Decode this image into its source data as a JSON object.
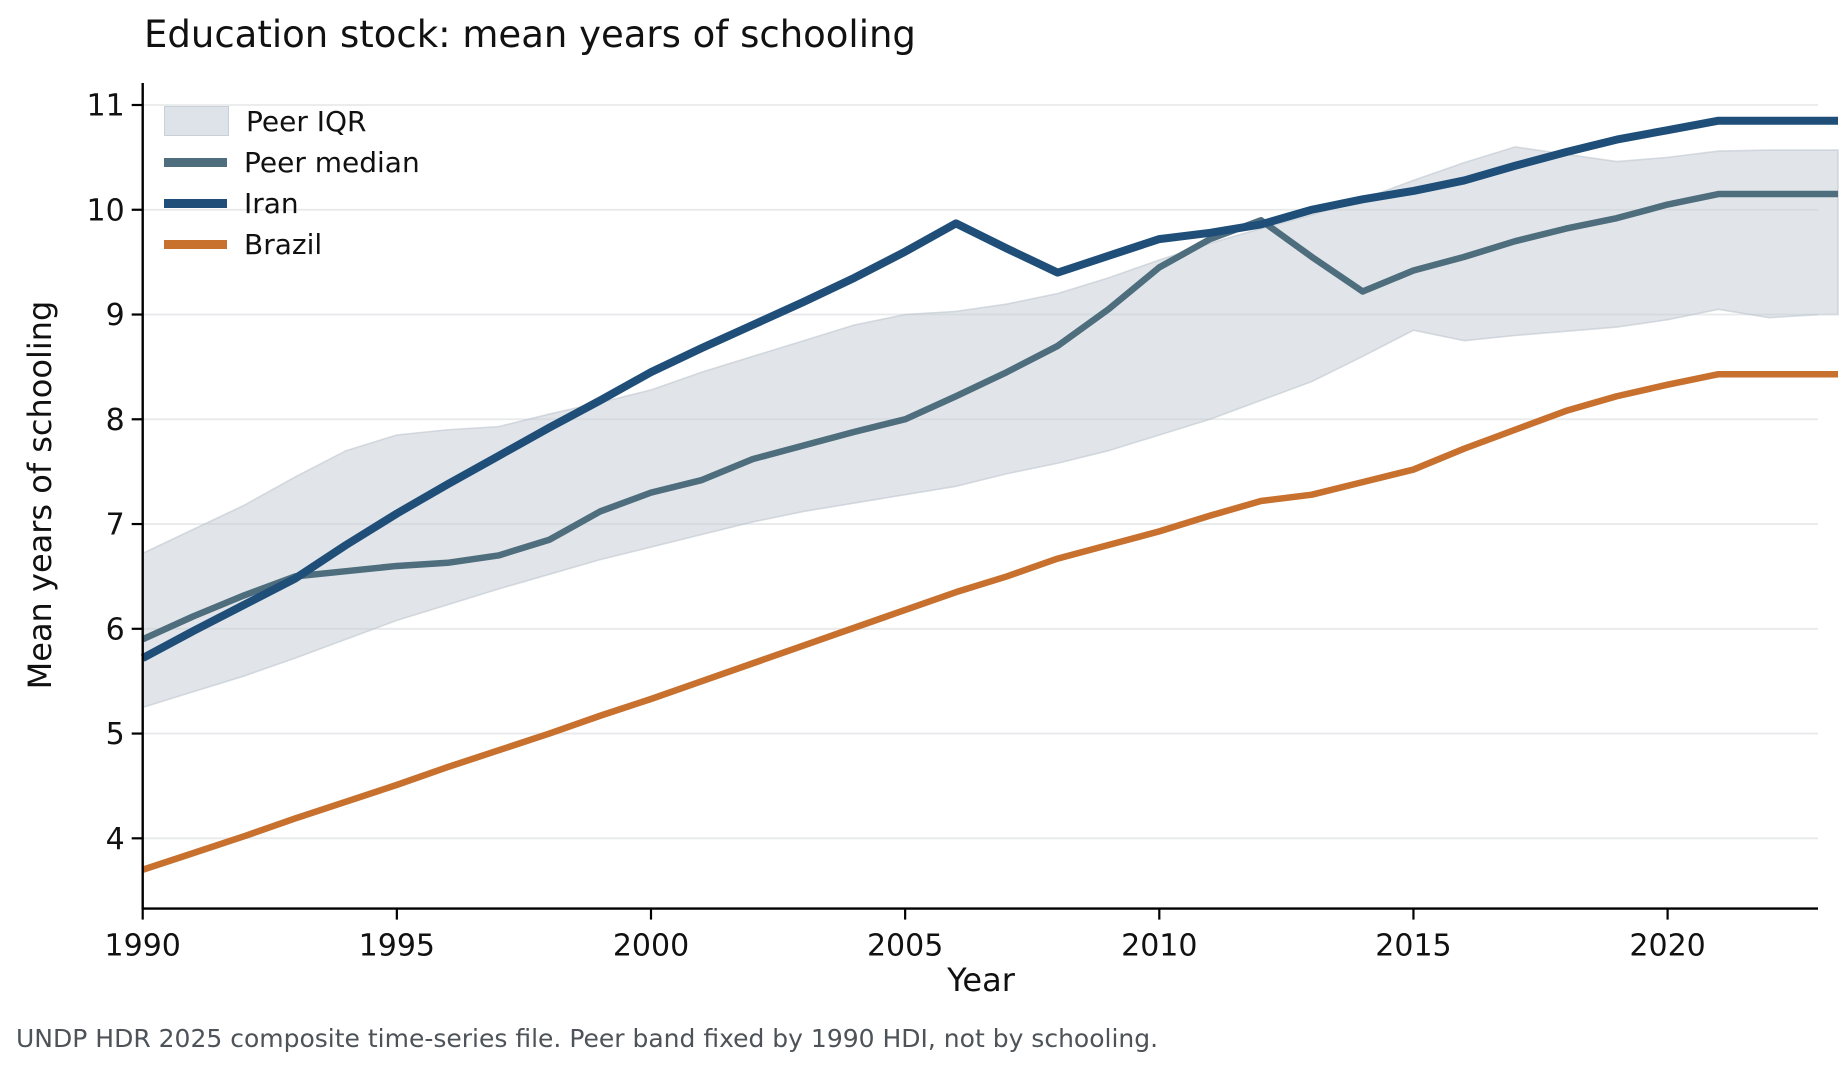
{
  "page": {
    "footnote": "UNDP HDR 2025 composite time-series file. Peer band fixed by 1990 HDI, not by schooling."
  },
  "colors": {
    "background": "#ffffff",
    "grid": "#e7e9eb",
    "axis": "#000000",
    "text": "#111111",
    "caption_text": "#4d5358",
    "band_fill": "#c3ccd4",
    "band_edge": "#b9c3cc",
    "band_swatch": "#dde3e8",
    "peer_median": "#4e6d7d",
    "iran": "#1f4e79",
    "brazil": "#c8702e"
  },
  "chart_data": {
    "type": "line",
    "title": "Education stock: mean years of schooling",
    "xlabel": "Year",
    "ylabel": "Mean years of schooling",
    "caption": "UNDP HDR 2025 composite time-series file. Peer band fixed by 1990 HDI, not by schooling.",
    "grid": "horizontal-only",
    "legend_position": "upper-left",
    "x_ticks": [
      1990,
      1995,
      2000,
      2005,
      2010,
      2015,
      2020
    ],
    "y_ticks": [
      4,
      5,
      6,
      7,
      8,
      9,
      10,
      11
    ],
    "xlim": [
      1990,
      2023
    ],
    "ylim": [
      3.33,
      11.21
    ],
    "years": [
      1990,
      1991,
      1992,
      1993,
      1994,
      1995,
      1996,
      1997,
      1998,
      1999,
      2000,
      2001,
      2002,
      2003,
      2004,
      2005,
      2006,
      2007,
      2008,
      2009,
      2010,
      2011,
      2012,
      2013,
      2014,
      2015,
      2016,
      2017,
      2018,
      2019,
      2020,
      2021,
      2022,
      2023
    ],
    "band": {
      "name": "Peer IQR",
      "upper": [
        6.72,
        6.95,
        7.18,
        7.45,
        7.7,
        7.85,
        7.9,
        7.93,
        8.05,
        8.16,
        8.28,
        8.45,
        8.6,
        8.75,
        8.9,
        9.0,
        9.03,
        9.1,
        9.2,
        9.35,
        9.52,
        9.68,
        9.82,
        9.95,
        10.1,
        10.28,
        10.45,
        10.6,
        10.53,
        10.46,
        10.5,
        10.56,
        10.57,
        10.57
      ],
      "lower": [
        5.25,
        5.4,
        5.55,
        5.72,
        5.9,
        6.08,
        6.23,
        6.38,
        6.52,
        6.66,
        6.78,
        6.9,
        7.02,
        7.12,
        7.2,
        7.28,
        7.36,
        7.48,
        7.58,
        7.7,
        7.85,
        8.0,
        8.18,
        8.36,
        8.6,
        8.85,
        8.75,
        8.8,
        8.84,
        8.88,
        8.95,
        9.05,
        8.97,
        9.0
      ]
    },
    "series": [
      {
        "name": "Peer median",
        "color_key": "peer_median",
        "width": 6.5,
        "values": [
          5.9,
          6.12,
          6.32,
          6.5,
          6.55,
          6.6,
          6.63,
          6.7,
          6.85,
          7.12,
          7.3,
          7.42,
          7.62,
          7.75,
          7.88,
          8.0,
          8.22,
          8.45,
          8.7,
          9.05,
          9.45,
          9.72,
          9.9,
          9.55,
          9.22,
          9.42,
          9.55,
          9.7,
          9.82,
          9.92,
          10.05,
          10.15,
          10.15,
          10.15
        ]
      },
      {
        "name": "Iran",
        "color_key": "iran",
        "width": 8,
        "values": [
          5.72,
          5.98,
          6.23,
          6.48,
          6.8,
          7.1,
          7.38,
          7.65,
          7.92,
          8.18,
          8.45,
          8.68,
          8.9,
          9.12,
          9.35,
          9.6,
          9.87,
          9.63,
          9.4,
          9.56,
          9.72,
          9.78,
          9.86,
          10.0,
          10.1,
          10.18,
          10.28,
          10.42,
          10.55,
          10.67,
          10.76,
          10.85,
          10.85,
          10.85
        ]
      },
      {
        "name": "Brazil",
        "color_key": "brazil",
        "width": 6.5,
        "values": [
          3.7,
          3.86,
          4.02,
          4.19,
          4.35,
          4.51,
          4.68,
          4.84,
          5.0,
          5.17,
          5.33,
          5.5,
          5.67,
          5.84,
          6.01,
          6.18,
          6.35,
          6.5,
          6.67,
          6.8,
          6.93,
          7.08,
          7.22,
          7.28,
          7.4,
          7.52,
          7.72,
          7.9,
          8.08,
          8.22,
          8.33,
          8.43,
          8.43,
          8.43
        ]
      }
    ],
    "legend": [
      {
        "label": "Peer IQR"
      },
      {
        "label": "Peer median"
      },
      {
        "label": "Iran"
      },
      {
        "label": "Brazil"
      }
    ]
  }
}
